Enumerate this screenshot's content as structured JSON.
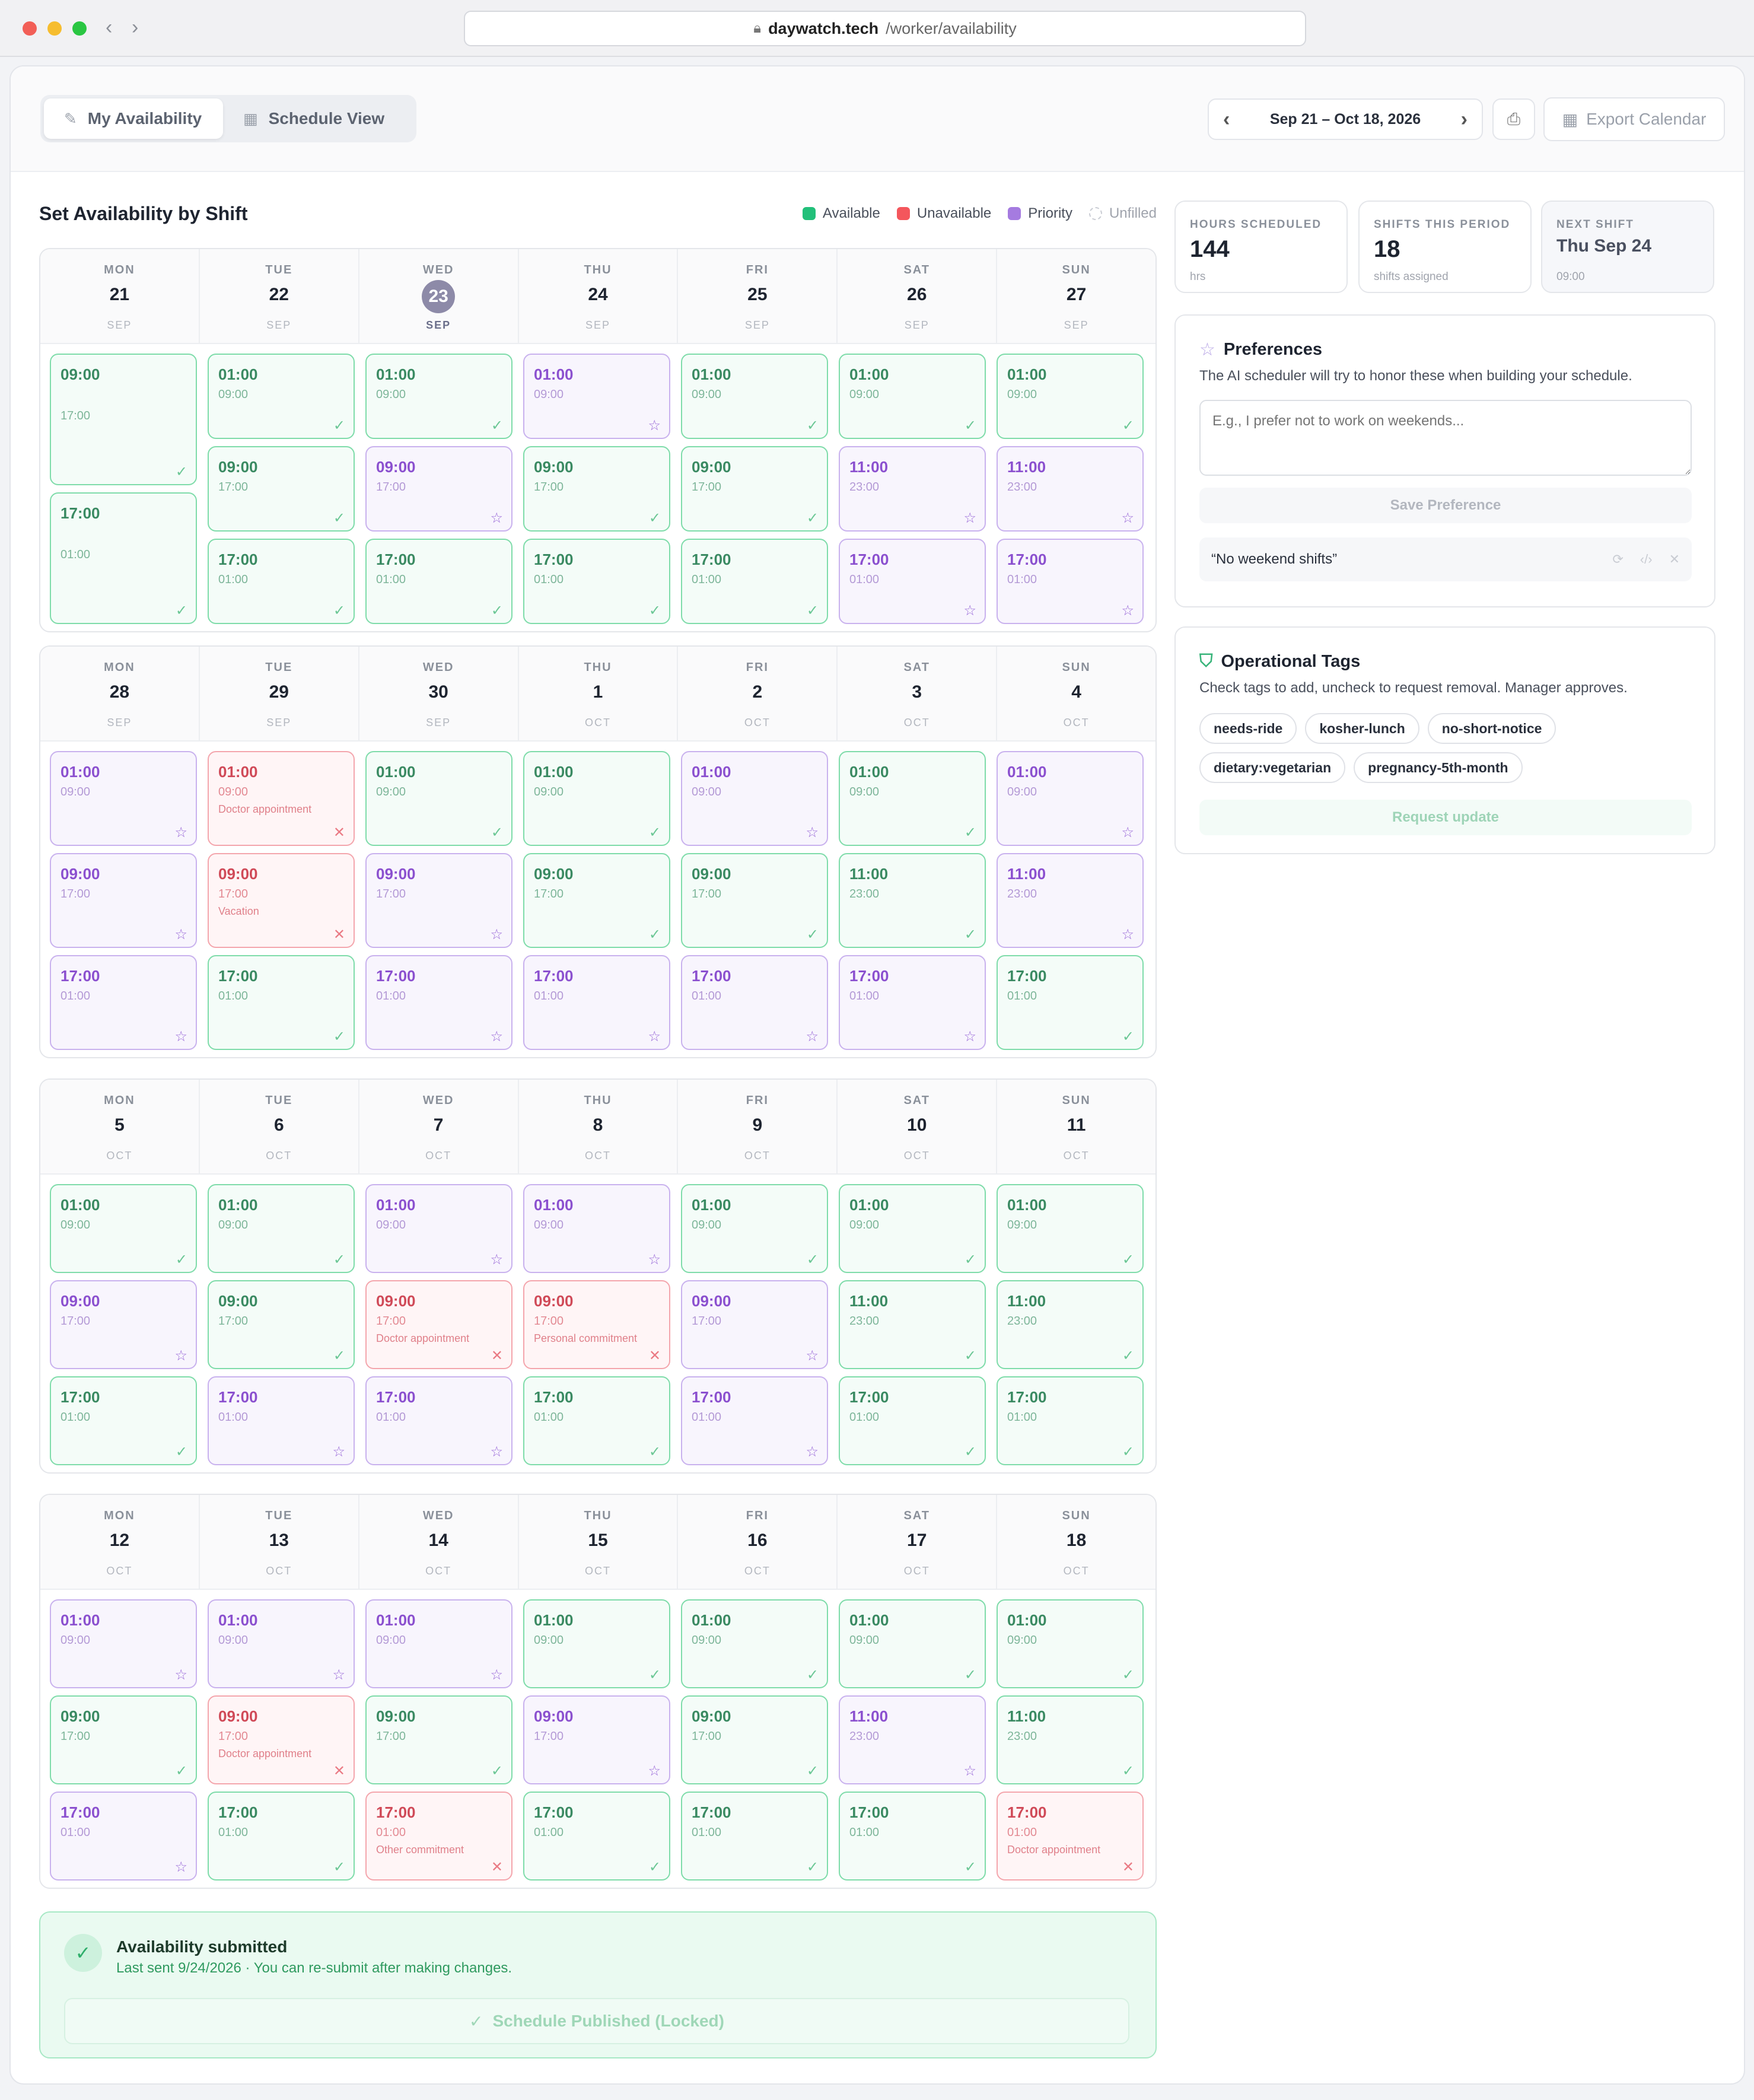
{
  "browser": {
    "host": "daywatch.tech",
    "path": "/worker/availability"
  },
  "tabs": [
    {
      "label": "My Availability",
      "icon": "eraser-icon",
      "active": true
    },
    {
      "label": "Schedule View",
      "icon": "calendar-icon",
      "active": false
    }
  ],
  "date_range": "Sep 21 – Oct 18, 2026",
  "export_label": "Export Calendar",
  "section_title": "Set Availability by Shift",
  "legend": {
    "available": "Available",
    "unavailable": "Unavailable",
    "priority": "Priority",
    "unfilled": "Unfilled"
  },
  "colors": {
    "available": "#22c07a",
    "unavailable": "#f4565c",
    "priority": "#a57be0"
  },
  "weeks": [
    {
      "days": [
        {
          "dow": "MON",
          "num": "21",
          "mon": "SEP",
          "shifts": [
            {
              "s": "09:00",
              "e": "17:00",
              "t": "a"
            },
            {
              "s": "17:00",
              "e": "01:00",
              "t": "a"
            }
          ]
        },
        {
          "dow": "TUE",
          "num": "22",
          "mon": "SEP",
          "shifts": [
            {
              "s": "01:00",
              "e": "09:00",
              "t": "a"
            },
            {
              "s": "09:00",
              "e": "17:00",
              "t": "a"
            },
            {
              "s": "17:00",
              "e": "01:00",
              "t": "a"
            }
          ]
        },
        {
          "dow": "WED",
          "num": "23",
          "mon": "SEP",
          "today": true,
          "shifts": [
            {
              "s": "01:00",
              "e": "09:00",
              "t": "a"
            },
            {
              "s": "09:00",
              "e": "17:00",
              "t": "p"
            },
            {
              "s": "17:00",
              "e": "01:00",
              "t": "a"
            }
          ]
        },
        {
          "dow": "THU",
          "num": "24",
          "mon": "SEP",
          "shifts": [
            {
              "s": "01:00",
              "e": "09:00",
              "t": "p"
            },
            {
              "s": "09:00",
              "e": "17:00",
              "t": "a"
            },
            {
              "s": "17:00",
              "e": "01:00",
              "t": "a"
            }
          ]
        },
        {
          "dow": "FRI",
          "num": "25",
          "mon": "SEP",
          "shifts": [
            {
              "s": "01:00",
              "e": "09:00",
              "t": "a"
            },
            {
              "s": "09:00",
              "e": "17:00",
              "t": "a"
            },
            {
              "s": "17:00",
              "e": "01:00",
              "t": "a"
            }
          ]
        },
        {
          "dow": "SAT",
          "num": "26",
          "mon": "SEP",
          "shifts": [
            {
              "s": "01:00",
              "e": "09:00",
              "t": "a"
            },
            {
              "s": "11:00",
              "e": "23:00",
              "t": "p"
            },
            {
              "s": "17:00",
              "e": "01:00",
              "t": "p"
            }
          ]
        },
        {
          "dow": "SUN",
          "num": "27",
          "mon": "SEP",
          "shifts": [
            {
              "s": "01:00",
              "e": "09:00",
              "t": "a"
            },
            {
              "s": "11:00",
              "e": "23:00",
              "t": "p"
            },
            {
              "s": "17:00",
              "e": "01:00",
              "t": "p"
            }
          ]
        }
      ]
    },
    {
      "days": [
        {
          "dow": "MON",
          "num": "28",
          "mon": "SEP",
          "shifts": [
            {
              "s": "01:00",
              "e": "09:00",
              "t": "p"
            },
            {
              "s": "09:00",
              "e": "17:00",
              "t": "p"
            },
            {
              "s": "17:00",
              "e": "01:00",
              "t": "p"
            }
          ]
        },
        {
          "dow": "TUE",
          "num": "29",
          "mon": "SEP",
          "shifts": [
            {
              "s": "01:00",
              "e": "09:00",
              "t": "u",
              "n": "Doctor appointment"
            },
            {
              "s": "09:00",
              "e": "17:00",
              "t": "u",
              "n": "Vacation"
            },
            {
              "s": "17:00",
              "e": "01:00",
              "t": "a"
            }
          ]
        },
        {
          "dow": "WED",
          "num": "30",
          "mon": "SEP",
          "shifts": [
            {
              "s": "01:00",
              "e": "09:00",
              "t": "a"
            },
            {
              "s": "09:00",
              "e": "17:00",
              "t": "p"
            },
            {
              "s": "17:00",
              "e": "01:00",
              "t": "p"
            }
          ]
        },
        {
          "dow": "THU",
          "num": "1",
          "mon": "OCT",
          "shifts": [
            {
              "s": "01:00",
              "e": "09:00",
              "t": "a"
            },
            {
              "s": "09:00",
              "e": "17:00",
              "t": "a"
            },
            {
              "s": "17:00",
              "e": "01:00",
              "t": "p"
            }
          ]
        },
        {
          "dow": "FRI",
          "num": "2",
          "mon": "OCT",
          "shifts": [
            {
              "s": "01:00",
              "e": "09:00",
              "t": "p"
            },
            {
              "s": "09:00",
              "e": "17:00",
              "t": "a"
            },
            {
              "s": "17:00",
              "e": "01:00",
              "t": "p"
            }
          ]
        },
        {
          "dow": "SAT",
          "num": "3",
          "mon": "OCT",
          "shifts": [
            {
              "s": "01:00",
              "e": "09:00",
              "t": "a"
            },
            {
              "s": "11:00",
              "e": "23:00",
              "t": "a"
            },
            {
              "s": "17:00",
              "e": "01:00",
              "t": "p"
            }
          ]
        },
        {
          "dow": "SUN",
          "num": "4",
          "mon": "OCT",
          "shifts": [
            {
              "s": "01:00",
              "e": "09:00",
              "t": "p"
            },
            {
              "s": "11:00",
              "e": "23:00",
              "t": "p"
            },
            {
              "s": "17:00",
              "e": "01:00",
              "t": "a"
            }
          ]
        }
      ]
    },
    {
      "days": [
        {
          "dow": "MON",
          "num": "5",
          "mon": "OCT",
          "shifts": [
            {
              "s": "01:00",
              "e": "09:00",
              "t": "a"
            },
            {
              "s": "09:00",
              "e": "17:00",
              "t": "p"
            },
            {
              "s": "17:00",
              "e": "01:00",
              "t": "a"
            }
          ]
        },
        {
          "dow": "TUE",
          "num": "6",
          "mon": "OCT",
          "shifts": [
            {
              "s": "01:00",
              "e": "09:00",
              "t": "a"
            },
            {
              "s": "09:00",
              "e": "17:00",
              "t": "a"
            },
            {
              "s": "17:00",
              "e": "01:00",
              "t": "p"
            }
          ]
        },
        {
          "dow": "WED",
          "num": "7",
          "mon": "OCT",
          "shifts": [
            {
              "s": "01:00",
              "e": "09:00",
              "t": "p"
            },
            {
              "s": "09:00",
              "e": "17:00",
              "t": "u",
              "n": "Doctor appointment"
            },
            {
              "s": "17:00",
              "e": "01:00",
              "t": "p"
            }
          ]
        },
        {
          "dow": "THU",
          "num": "8",
          "mon": "OCT",
          "shifts": [
            {
              "s": "01:00",
              "e": "09:00",
              "t": "p"
            },
            {
              "s": "09:00",
              "e": "17:00",
              "t": "u",
              "n": "Personal commitment"
            },
            {
              "s": "17:00",
              "e": "01:00",
              "t": "a"
            }
          ]
        },
        {
          "dow": "FRI",
          "num": "9",
          "mon": "OCT",
          "shifts": [
            {
              "s": "01:00",
              "e": "09:00",
              "t": "a"
            },
            {
              "s": "09:00",
              "e": "17:00",
              "t": "p"
            },
            {
              "s": "17:00",
              "e": "01:00",
              "t": "p"
            }
          ]
        },
        {
          "dow": "SAT",
          "num": "10",
          "mon": "OCT",
          "shifts": [
            {
              "s": "01:00",
              "e": "09:00",
              "t": "a"
            },
            {
              "s": "11:00",
              "e": "23:00",
              "t": "a"
            },
            {
              "s": "17:00",
              "e": "01:00",
              "t": "a"
            }
          ]
        },
        {
          "dow": "SUN",
          "num": "11",
          "mon": "OCT",
          "shifts": [
            {
              "s": "01:00",
              "e": "09:00",
              "t": "a"
            },
            {
              "s": "11:00",
              "e": "23:00",
              "t": "a"
            },
            {
              "s": "17:00",
              "e": "01:00",
              "t": "a"
            }
          ]
        }
      ]
    },
    {
      "days": [
        {
          "dow": "MON",
          "num": "12",
          "mon": "OCT",
          "shifts": [
            {
              "s": "01:00",
              "e": "09:00",
              "t": "p"
            },
            {
              "s": "09:00",
              "e": "17:00",
              "t": "a"
            },
            {
              "s": "17:00",
              "e": "01:00",
              "t": "p"
            }
          ]
        },
        {
          "dow": "TUE",
          "num": "13",
          "mon": "OCT",
          "shifts": [
            {
              "s": "01:00",
              "e": "09:00",
              "t": "p"
            },
            {
              "s": "09:00",
              "e": "17:00",
              "t": "u",
              "n": "Doctor appointment"
            },
            {
              "s": "17:00",
              "e": "01:00",
              "t": "a"
            }
          ]
        },
        {
          "dow": "WED",
          "num": "14",
          "mon": "OCT",
          "shifts": [
            {
              "s": "01:00",
              "e": "09:00",
              "t": "p"
            },
            {
              "s": "09:00",
              "e": "17:00",
              "t": "a"
            },
            {
              "s": "17:00",
              "e": "01:00",
              "t": "u",
              "n": "Other commitment"
            }
          ]
        },
        {
          "dow": "THU",
          "num": "15",
          "mon": "OCT",
          "shifts": [
            {
              "s": "01:00",
              "e": "09:00",
              "t": "a"
            },
            {
              "s": "09:00",
              "e": "17:00",
              "t": "p"
            },
            {
              "s": "17:00",
              "e": "01:00",
              "t": "a"
            }
          ]
        },
        {
          "dow": "FRI",
          "num": "16",
          "mon": "OCT",
          "shifts": [
            {
              "s": "01:00",
              "e": "09:00",
              "t": "a"
            },
            {
              "s": "09:00",
              "e": "17:00",
              "t": "a"
            },
            {
              "s": "17:00",
              "e": "01:00",
              "t": "a"
            }
          ]
        },
        {
          "dow": "SAT",
          "num": "17",
          "mon": "OCT",
          "shifts": [
            {
              "s": "01:00",
              "e": "09:00",
              "t": "a"
            },
            {
              "s": "11:00",
              "e": "23:00",
              "t": "p"
            },
            {
              "s": "17:00",
              "e": "01:00",
              "t": "a"
            }
          ]
        },
        {
          "dow": "SUN",
          "num": "18",
          "mon": "OCT",
          "shifts": [
            {
              "s": "01:00",
              "e": "09:00",
              "t": "a"
            },
            {
              "s": "11:00",
              "e": "23:00",
              "t": "a"
            },
            {
              "s": "17:00",
              "e": "01:00",
              "t": "u",
              "n": "Doctor appointment"
            }
          ]
        }
      ]
    }
  ],
  "submitted": {
    "title": "Availability submitted",
    "subtitle": "Last sent 9/24/2026 · You can re-submit after making changes.",
    "locked_label": "Schedule Published (Locked)"
  },
  "stats": {
    "hours": {
      "label": "HOURS SCHEDULED",
      "value": "144",
      "sub": "hrs"
    },
    "shifts": {
      "label": "SHIFTS THIS PERIOD",
      "value": "18",
      "sub": "shifts assigned"
    },
    "next": {
      "label": "NEXT SHIFT",
      "value": "Thu Sep 24",
      "sub": "09:00"
    }
  },
  "preferences": {
    "title": "Preferences",
    "desc": "The AI scheduler will try to honor these when building your schedule.",
    "placeholder": "E.g., I prefer not to work on weekends...",
    "save_label": "Save Preference",
    "items": [
      "“No weekend shifts”"
    ]
  },
  "tags": {
    "title": "Operational Tags",
    "desc": "Check tags to add, uncheck to request removal. Manager approves.",
    "items": [
      "needs-ride",
      "kosher-lunch",
      "no-short-notice",
      "dietary:vegetarian",
      "pregnancy-5th-month"
    ],
    "request_label": "Request update"
  }
}
